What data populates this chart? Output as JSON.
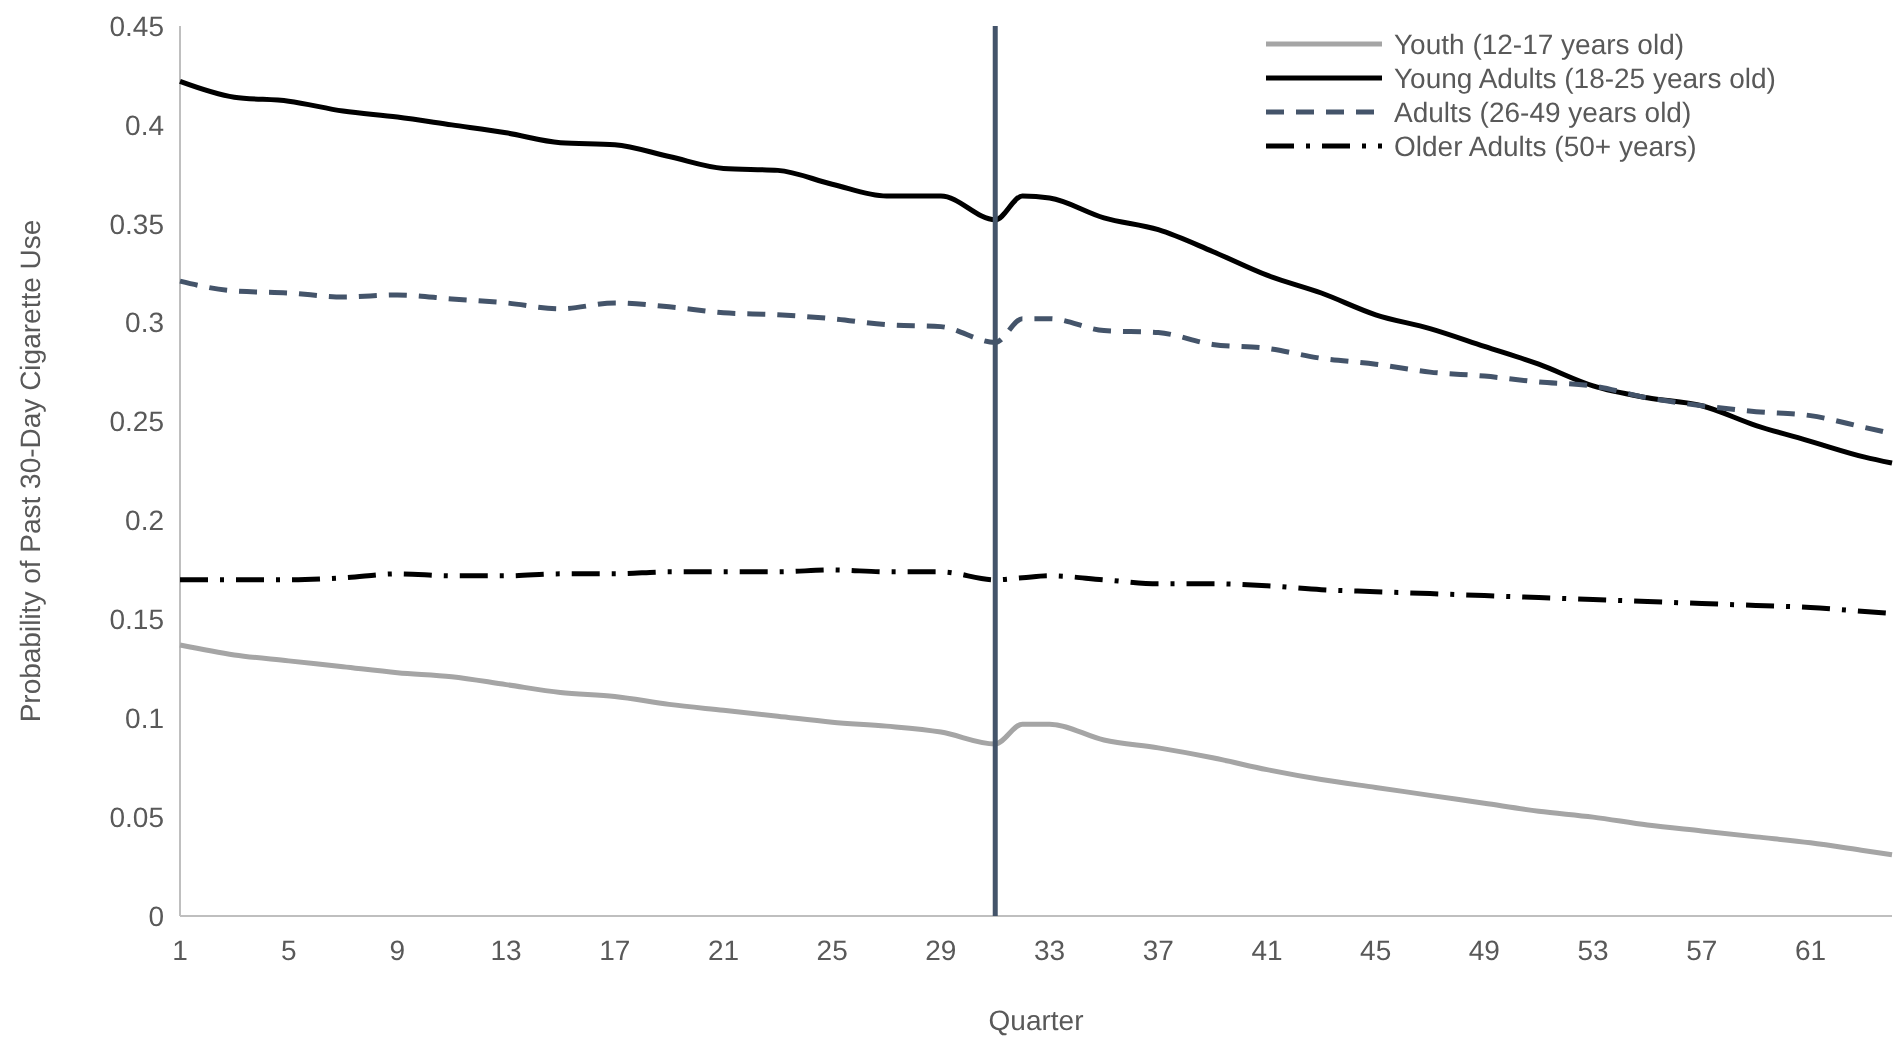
{
  "chart_data": {
    "type": "line",
    "xlabel": "Quarter",
    "ylabel": "Probability of Past 30-Day Cigarette Use",
    "x": [
      1,
      3,
      5,
      7,
      9,
      11,
      13,
      15,
      17,
      19,
      21,
      23,
      25,
      27,
      29,
      31,
      32,
      33,
      35,
      37,
      39,
      41,
      43,
      45,
      47,
      49,
      51,
      53,
      55,
      57,
      59,
      61,
      63,
      64
    ],
    "series": [
      {
        "name": "Youth (12-17 years old)",
        "color": "#a5a5a5",
        "line_style": "solid",
        "values": [
          0.137,
          0.132,
          0.129,
          0.126,
          0.123,
          0.121,
          0.117,
          0.113,
          0.111,
          0.107,
          0.104,
          0.101,
          0.098,
          0.096,
          0.093,
          0.087,
          0.097,
          0.097,
          0.089,
          0.085,
          0.08,
          0.074,
          0.069,
          0.065,
          0.061,
          0.057,
          0.053,
          0.05,
          0.046,
          0.043,
          0.04,
          0.037,
          0.033,
          0.031
        ]
      },
      {
        "name": "Young Adults (18-25 years old)",
        "color": "#000000",
        "line_style": "solid",
        "values": [
          0.422,
          0.414,
          0.412,
          0.407,
          0.404,
          0.4,
          0.396,
          0.391,
          0.39,
          0.384,
          0.378,
          0.377,
          0.37,
          0.364,
          0.364,
          0.352,
          0.364,
          0.363,
          0.353,
          0.347,
          0.336,
          0.324,
          0.315,
          0.304,
          0.297,
          0.288,
          0.279,
          0.268,
          0.262,
          0.258,
          0.248,
          0.24,
          0.232,
          0.229
        ]
      },
      {
        "name": "Adults (26-49 years old)",
        "color": "#44546a",
        "line_style": "dashed",
        "values": [
          0.321,
          0.316,
          0.315,
          0.313,
          0.314,
          0.312,
          0.31,
          0.307,
          0.31,
          0.308,
          0.305,
          0.304,
          0.302,
          0.299,
          0.298,
          0.29,
          0.302,
          0.302,
          0.296,
          0.295,
          0.289,
          0.287,
          0.282,
          0.279,
          0.275,
          0.273,
          0.27,
          0.268,
          0.262,
          0.258,
          0.255,
          0.253,
          0.247,
          0.244
        ]
      },
      {
        "name": "Older Adults (50+ years)",
        "color": "#000000",
        "line_style": "dashdot",
        "values": [
          0.17,
          0.17,
          0.17,
          0.171,
          0.173,
          0.172,
          0.172,
          0.173,
          0.173,
          0.174,
          0.174,
          0.174,
          0.175,
          0.174,
          0.174,
          0.17,
          0.171,
          0.172,
          0.17,
          0.168,
          0.168,
          0.167,
          0.165,
          0.164,
          0.163,
          0.162,
          0.161,
          0.16,
          0.159,
          0.158,
          0.157,
          0.156,
          0.154,
          0.153
        ]
      }
    ],
    "xlim": [
      1,
      64
    ],
    "xticks": [
      1,
      5,
      9,
      13,
      17,
      21,
      25,
      29,
      33,
      37,
      41,
      45,
      49,
      53,
      57,
      61
    ],
    "ylim": [
      0,
      0.45
    ],
    "yticks": [
      0,
      0.05,
      0.1,
      0.15,
      0.2,
      0.25,
      0.3,
      0.35,
      0.4,
      0.45
    ],
    "ref_lines": [
      {
        "axis": "x",
        "value": 31,
        "color": "#44546a"
      }
    ],
    "grid": false,
    "legend": "top right",
    "marker": "none"
  }
}
